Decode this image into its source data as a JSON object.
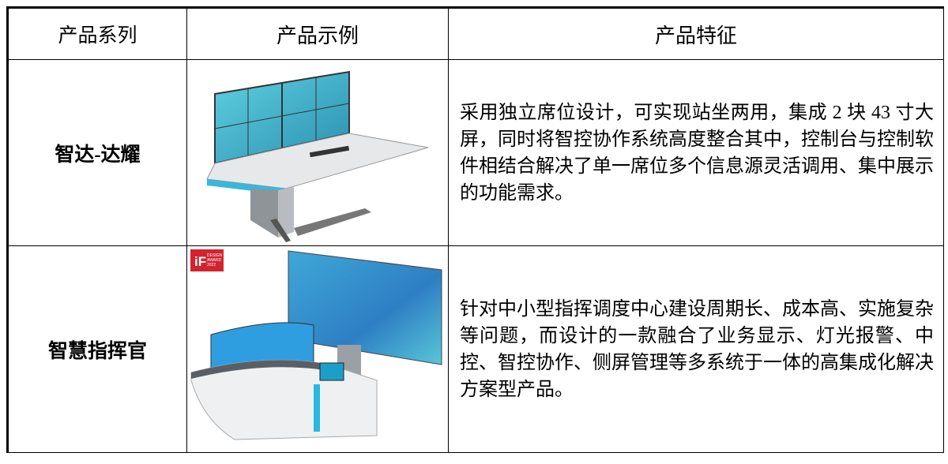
{
  "table": {
    "header": [
      "产品系列",
      "产品示例",
      "产品特征"
    ],
    "rows": [
      [
        "智达-达耀",
        "采用独立席位设计，可实现站坐两用，集成 2 块 43 寸大屏，同时将智控协作系统高度整合其中，控制台与控制软件相结合解决了单一席位多个信息源灵活调用、集中展示的功能需求。"
      ],
      [
        "智慧指挥官",
        "针对中小型指挥调度中心建设周期长、成本高、实施复杂等问题，而设计的一款融合了业务显示、灯光报警、中控、智控协作、侧屏管理等多系统于一体的高集成化解决方案型产品。"
      ]
    ]
  },
  "badge": {
    "brand": "iF",
    "lines": [
      "DESIGN",
      "AWARD",
      "2022"
    ]
  }
}
